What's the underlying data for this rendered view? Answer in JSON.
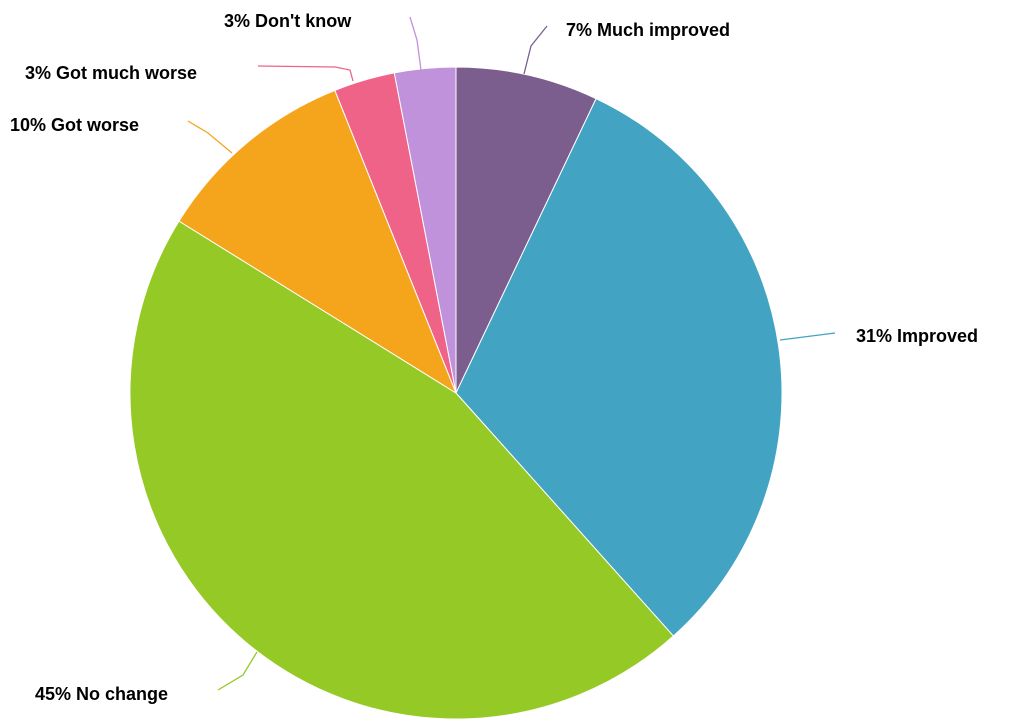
{
  "chart_data": {
    "type": "pie",
    "title": "",
    "start": "top",
    "direction": "clockwise",
    "slices": [
      {
        "category": "Much improved",
        "value": 7,
        "value_label": "7%",
        "label": "7% Much improved",
        "color": "#7b5e8e"
      },
      {
        "category": "Improved",
        "value": 31,
        "value_label": "31%",
        "label": "31% Improved",
        "color": "#42a3c2"
      },
      {
        "category": "No change",
        "value": 45,
        "value_label": "45%",
        "label": "45% No change",
        "color": "#95c926"
      },
      {
        "category": "Got worse",
        "value": 10,
        "value_label": "10%",
        "label": "10% Got worse",
        "color": "#f5a51b"
      },
      {
        "category": "Got much worse",
        "value": 3,
        "value_label": "3%",
        "label": "3% Got much worse",
        "color": "#f06388"
      },
      {
        "category": "Don't know",
        "value": 3,
        "value_label": "3%",
        "label": "3% Don't know",
        "color": "#bf92db"
      }
    ]
  }
}
